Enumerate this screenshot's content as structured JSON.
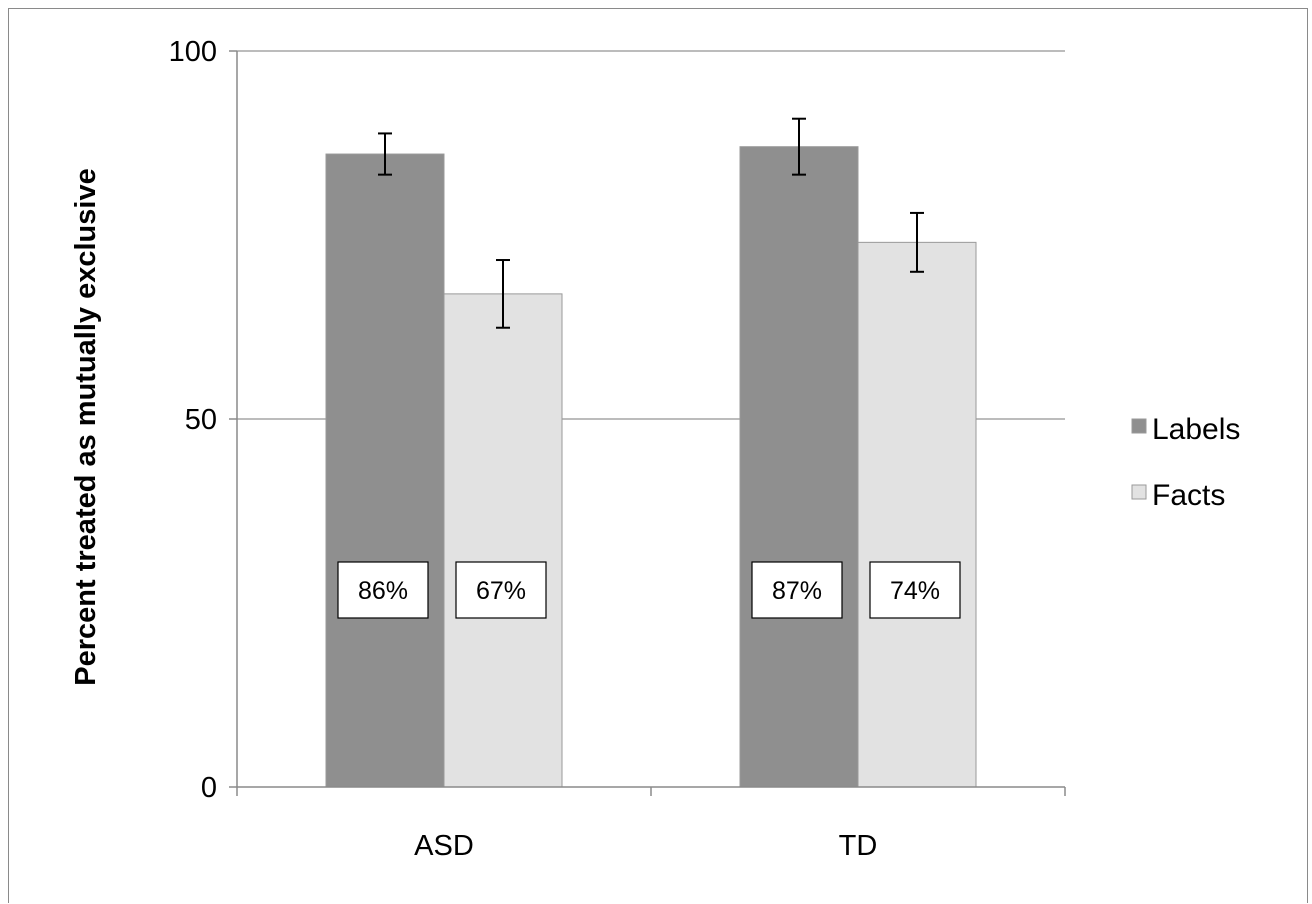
{
  "chart_data": {
    "type": "bar",
    "title": "",
    "xlabel": "",
    "ylabel": "Percent treated as mutually exclusive",
    "ylim": [
      0,
      100
    ],
    "yticks": [
      0,
      50,
      100
    ],
    "grid": true,
    "legend_position": "right",
    "categories": [
      "ASD",
      "TD"
    ],
    "series": [
      {
        "name": "Labels",
        "color": "#8f8f8f",
        "values": [
          86,
          87
        ],
        "error": [
          2.8,
          3.8
        ],
        "data_labels": [
          "86%",
          "87%"
        ]
      },
      {
        "name": "Facts",
        "color": "#e2e2e2",
        "values": [
          67,
          74
        ],
        "error": [
          4.6,
          4.0
        ],
        "data_labels": [
          "67%",
          "74%"
        ]
      }
    ]
  }
}
